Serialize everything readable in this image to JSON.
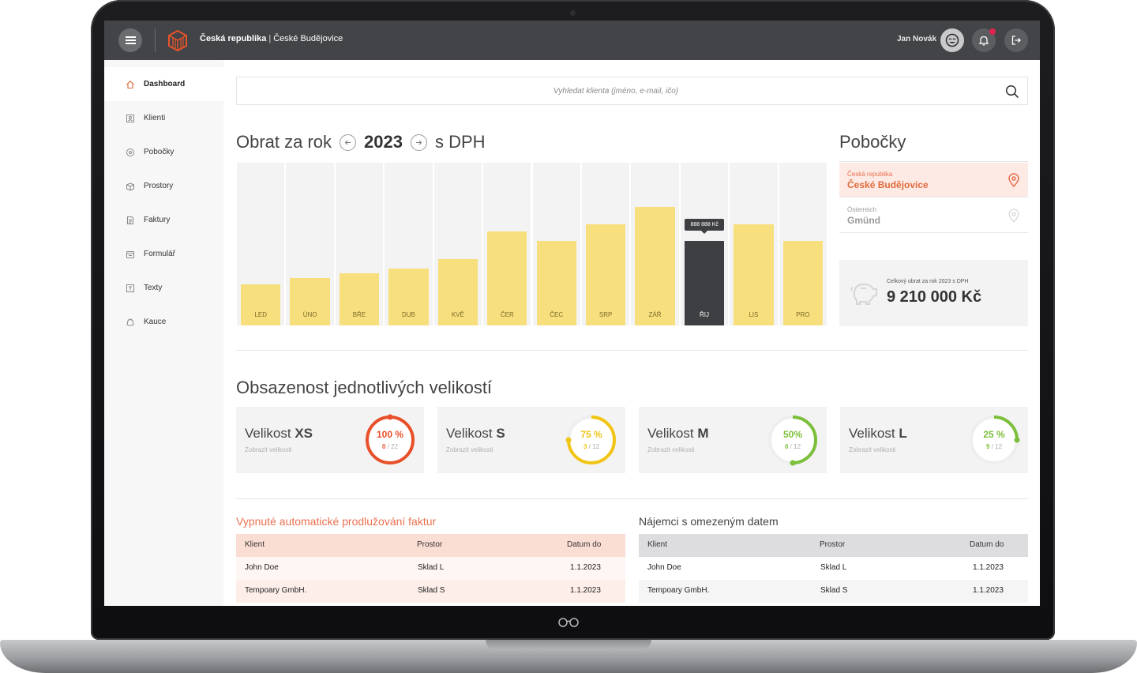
{
  "topbar": {
    "country": "Česká republika",
    "separator": "|",
    "city": "České Budějovice",
    "user_name": "Jan Novák",
    "notification_color": "#e0224e"
  },
  "sidebar": {
    "items": [
      {
        "label": "Dashboard",
        "icon": "home-icon",
        "active": true
      },
      {
        "label": "Klienti",
        "icon": "client-card-icon"
      },
      {
        "label": "Pobočky",
        "icon": "branch-icon"
      },
      {
        "label": "Prostory",
        "icon": "box-icon"
      },
      {
        "label": "Faktury",
        "icon": "invoice-icon"
      },
      {
        "label": "Formulář",
        "icon": "form-icon"
      },
      {
        "label": "Texty",
        "icon": "text-icon"
      },
      {
        "label": "Kauce",
        "icon": "deposit-icon"
      }
    ]
  },
  "search": {
    "placeholder": "Vyhledat klienta (jméno, e-mail, ičo)"
  },
  "revenue": {
    "title_prefix": "Obrat za rok",
    "year": "2023",
    "title_suffix": "s DPH",
    "tooltip": "888 888 Kč",
    "selected_month": "ŘIJ"
  },
  "chart_data": {
    "type": "bar",
    "categories": [
      "LED",
      "ÚNO",
      "BŘE",
      "DUB",
      "KVĚ",
      "ČER",
      "ČEC",
      "SRP",
      "ZÁŘ",
      "ŘIJ",
      "LIS",
      "PRO"
    ],
    "values": [
      0.25,
      0.29,
      0.32,
      0.35,
      0.41,
      0.58,
      0.52,
      0.62,
      0.73,
      0.52,
      0.62,
      0.52
    ],
    "value_unit": "fraction of chart height (no axis printed)",
    "colors": {
      "bar": "#f8df7d",
      "selected": "#3e3f42",
      "track": "#f3f3f3"
    }
  },
  "branches": {
    "title": "Pobočky",
    "items": [
      {
        "country": "Česká republika",
        "city": "České Budějovice",
        "active": true
      },
      {
        "country": "Österreich",
        "city": "Gmünd",
        "active": false
      }
    ],
    "total_label": "Celkový obrat za rok 2023 s DPH",
    "total_value": "9 210 000 Kč"
  },
  "occupancy": {
    "title": "Obsazenost jednotlivých velikostí",
    "cards": [
      {
        "prefix": "Velikost",
        "size": "XS",
        "link": "Zobrazit velikosti",
        "percent_text": "100 %",
        "used": "0",
        "total": "/ 22",
        "fraction": 1.0,
        "color": "#e8502a"
      },
      {
        "prefix": "Velikost",
        "size": "S",
        "link": "Zobrazit velikosti",
        "percent_text": "75 %",
        "used": "3",
        "total": "/ 12",
        "fraction": 0.75,
        "color": "#f2c413"
      },
      {
        "prefix": "Velikost",
        "size": "M",
        "link": "Zobrazit velikosti",
        "percent_text": "50%",
        "used": "6",
        "total": "/ 12",
        "fraction": 0.5,
        "color": "#7cbf3a"
      },
      {
        "prefix": "Velikost",
        "size": "L",
        "link": "Zobrazit velikosti",
        "percent_text": "25 %",
        "used": "9",
        "total": "/ 12",
        "fraction": 0.25,
        "color": "#7cbf3a"
      }
    ]
  },
  "tables": [
    {
      "title": "Vypnuté automatické prodlužování faktur",
      "title_color": "#e8704f",
      "headers": [
        "Klient",
        "Prostor",
        "Datum do"
      ],
      "rows": [
        [
          "John Doe",
          "Sklad L",
          "1.1.2023"
        ],
        [
          "Tempoary GmbH.",
          "Sklad S",
          "1.1.2023"
        ]
      ]
    },
    {
      "title": "Nájemci s omezeným datem",
      "title_color": "#444444",
      "headers": [
        "Klient",
        "Prostor",
        "Datum do"
      ],
      "rows": [
        [
          "John Doe",
          "Sklad L",
          "1.1.2023"
        ],
        [
          "Tempoary GmbH.",
          "Sklad S",
          "1.1.2023"
        ]
      ]
    }
  ],
  "accent_color": "#e06a3c"
}
